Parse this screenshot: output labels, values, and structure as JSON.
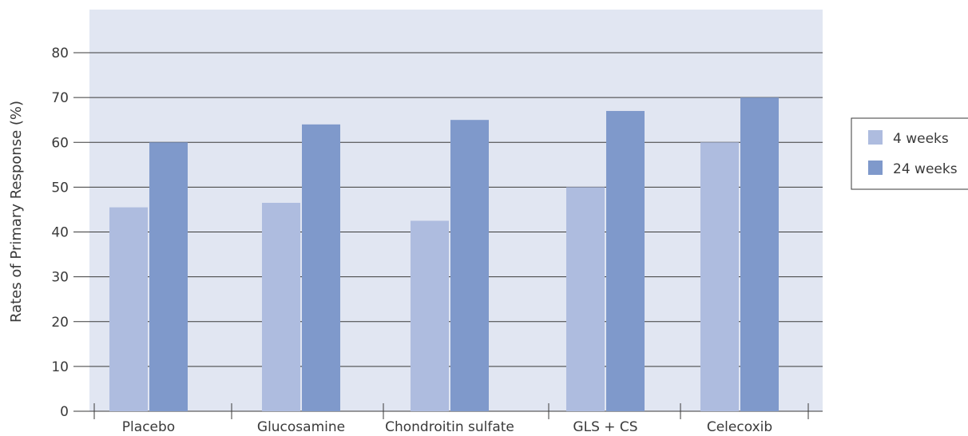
{
  "chart_data": {
    "type": "bar",
    "title": "",
    "xlabel": "",
    "ylabel": "Rates of Primary Response (%)",
    "ylim": [
      0,
      80
    ],
    "yticks": [
      0,
      10,
      20,
      30,
      40,
      50,
      60,
      70,
      80
    ],
    "grid": true,
    "legend_position": "right",
    "categories": [
      "Placebo",
      "Glucosamine",
      "Chondroitin sulfate",
      "GLS + CS",
      "Celecoxib"
    ],
    "series": [
      {
        "name": "4 weeks",
        "color": "#aebcdf",
        "values": [
          45.5,
          46.5,
          42.5,
          50,
          60
        ]
      },
      {
        "name": "24 weeks",
        "color": "#7f99cb",
        "values": [
          60,
          64,
          65,
          67,
          70
        ]
      }
    ],
    "plot_background": "#e1e6f2"
  }
}
